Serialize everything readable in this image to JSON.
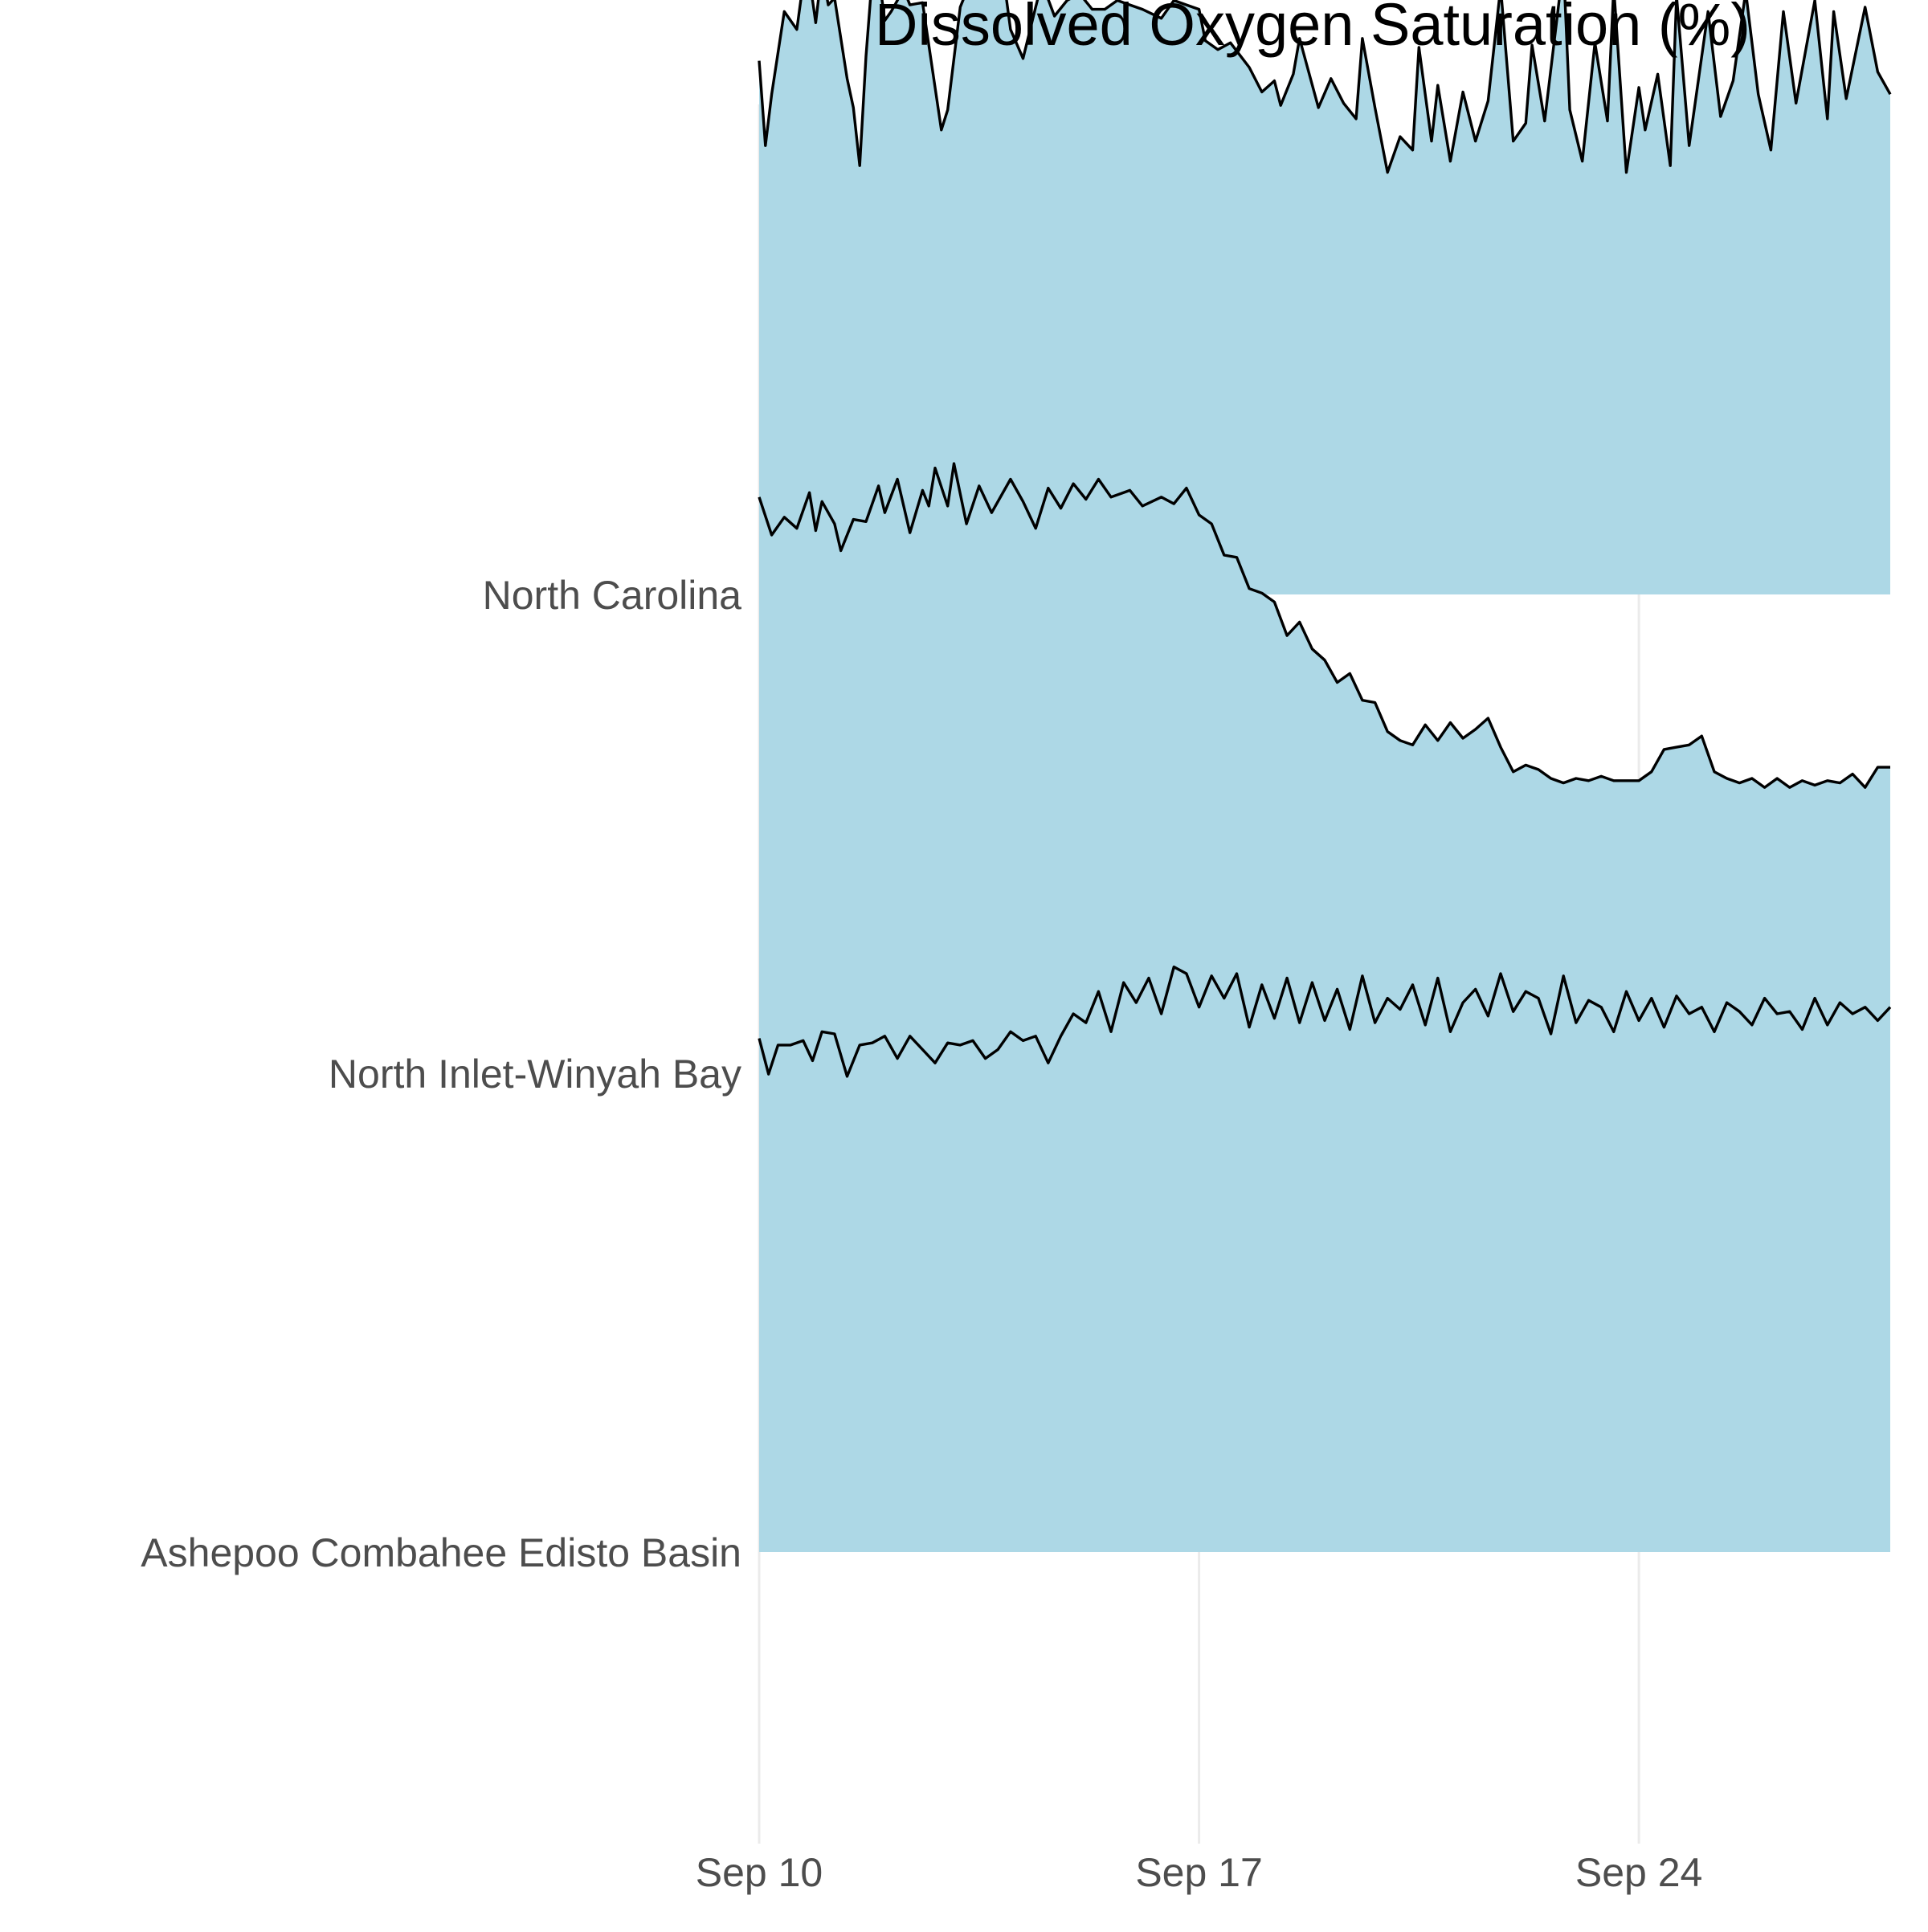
{
  "chart_data": {
    "type": "area",
    "title": "Dissolved Oxygen Saturation (%)",
    "xlabel": "",
    "ylabel": "",
    "xlim": [
      "Sep 10",
      "Sep 28"
    ],
    "x_ticks": [
      {
        "label": "Sep 10",
        "day": 10
      },
      {
        "label": "Sep 17",
        "day": 17
      },
      {
        "label": "Sep 24",
        "day": 24
      }
    ],
    "grid": "vertical major gridlines only",
    "fill_color": "#add8e6",
    "line_color": "#000000",
    "series": [
      {
        "name": "North Carolina",
        "points": [
          [
            10.0,
            94
          ],
          [
            10.1,
            56
          ],
          [
            10.2,
            79
          ],
          [
            10.4,
            116
          ],
          [
            10.6,
            108
          ],
          [
            10.7,
            129
          ],
          [
            10.8,
            131
          ],
          [
            10.9,
            111
          ],
          [
            11.0,
            135
          ],
          [
            11.1,
            119
          ],
          [
            11.2,
            122
          ],
          [
            11.4,
            86
          ],
          [
            11.5,
            73
          ],
          [
            11.6,
            47
          ],
          [
            11.7,
            96
          ],
          [
            11.8,
            132
          ],
          [
            11.9,
            133
          ],
          [
            12.0,
            112
          ],
          [
            12.1,
            116
          ],
          [
            12.3,
            126
          ],
          [
            12.4,
            119
          ],
          [
            12.6,
            120
          ],
          [
            12.8,
            82
          ],
          [
            12.9,
            63
          ],
          [
            13.0,
            72
          ],
          [
            13.2,
            118
          ],
          [
            13.4,
            132
          ],
          [
            13.5,
            131
          ],
          [
            13.7,
            130
          ],
          [
            13.9,
            129
          ],
          [
            14.0,
            108
          ],
          [
            14.2,
            95
          ],
          [
            14.4,
            118
          ],
          [
            14.5,
            129
          ],
          [
            14.7,
            114
          ],
          [
            14.9,
            121
          ],
          [
            15.1,
            124
          ],
          [
            15.3,
            117
          ],
          [
            15.5,
            117
          ],
          [
            15.7,
            121
          ],
          [
            15.9,
            119
          ],
          [
            16.1,
            117
          ],
          [
            16.4,
            113
          ],
          [
            16.6,
            121
          ],
          [
            16.8,
            119
          ],
          [
            17.0,
            117
          ],
          [
            17.1,
            103
          ],
          [
            17.3,
            99
          ],
          [
            17.5,
            102
          ],
          [
            17.8,
            91
          ],
          [
            18.0,
            80
          ],
          [
            18.2,
            85
          ],
          [
            18.3,
            74
          ],
          [
            18.5,
            88
          ],
          [
            18.6,
            104
          ],
          [
            18.9,
            73
          ],
          [
            19.1,
            86
          ],
          [
            19.3,
            75
          ],
          [
            19.5,
            68
          ],
          [
            19.6,
            104
          ],
          [
            19.8,
            73
          ],
          [
            20.0,
            44
          ],
          [
            20.2,
            60
          ],
          [
            20.4,
            54
          ],
          [
            20.5,
            100
          ],
          [
            20.7,
            58
          ],
          [
            20.8,
            83
          ],
          [
            21.0,
            49
          ],
          [
            21.2,
            80
          ],
          [
            21.4,
            58
          ],
          [
            21.6,
            76
          ],
          [
            21.8,
            127
          ],
          [
            22.0,
            58
          ],
          [
            22.2,
            66
          ],
          [
            22.3,
            101
          ],
          [
            22.5,
            67
          ],
          [
            22.8,
            137
          ],
          [
            22.9,
            72
          ],
          [
            23.1,
            49
          ],
          [
            23.3,
            102
          ],
          [
            23.5,
            67
          ],
          [
            23.6,
            127
          ],
          [
            23.8,
            44
          ],
          [
            24.0,
            82
          ],
          [
            24.1,
            63
          ],
          [
            24.3,
            88
          ],
          [
            24.5,
            47
          ],
          [
            24.6,
            123
          ],
          [
            24.8,
            56
          ],
          [
            25.1,
            116
          ],
          [
            25.3,
            69
          ],
          [
            25.5,
            85
          ],
          [
            25.7,
            125
          ],
          [
            25.9,
            79
          ],
          [
            26.1,
            54
          ],
          [
            26.3,
            116
          ],
          [
            26.5,
            75
          ],
          [
            26.8,
            121
          ],
          [
            27.0,
            68
          ],
          [
            27.1,
            116
          ],
          [
            27.3,
            77
          ],
          [
            27.6,
            118
          ],
          [
            27.8,
            89
          ],
          [
            28.0,
            79
          ]
        ]
      },
      {
        "name": "North Inlet-Winyah Bay",
        "points": [
          [
            10.0,
            113
          ],
          [
            10.2,
            96
          ],
          [
            10.4,
            104
          ],
          [
            10.6,
            99
          ],
          [
            10.8,
            115
          ],
          [
            10.9,
            98
          ],
          [
            11.0,
            111
          ],
          [
            11.2,
            101
          ],
          [
            11.3,
            89
          ],
          [
            11.5,
            103
          ],
          [
            11.7,
            102
          ],
          [
            11.9,
            118
          ],
          [
            12.0,
            106
          ],
          [
            12.2,
            121
          ],
          [
            12.4,
            97
          ],
          [
            12.6,
            116
          ],
          [
            12.7,
            109
          ],
          [
            12.8,
            126
          ],
          [
            13.0,
            109
          ],
          [
            13.1,
            128
          ],
          [
            13.3,
            101
          ],
          [
            13.5,
            118
          ],
          [
            13.7,
            106
          ],
          [
            14.0,
            121
          ],
          [
            14.2,
            111
          ],
          [
            14.4,
            99
          ],
          [
            14.6,
            117
          ],
          [
            14.8,
            108
          ],
          [
            15.0,
            119
          ],
          [
            15.2,
            112
          ],
          [
            15.4,
            121
          ],
          [
            15.6,
            113
          ],
          [
            15.9,
            116
          ],
          [
            16.1,
            109
          ],
          [
            16.4,
            113
          ],
          [
            16.6,
            110
          ],
          [
            16.8,
            117
          ],
          [
            17.0,
            105
          ],
          [
            17.2,
            101
          ],
          [
            17.4,
            87
          ],
          [
            17.6,
            86
          ],
          [
            17.8,
            72
          ],
          [
            18.0,
            70
          ],
          [
            18.2,
            66
          ],
          [
            18.4,
            51
          ],
          [
            18.6,
            57
          ],
          [
            18.8,
            45
          ],
          [
            19.0,
            40
          ],
          [
            19.2,
            30
          ],
          [
            19.4,
            34
          ],
          [
            19.6,
            22
          ],
          [
            19.8,
            21
          ],
          [
            20.0,
            8
          ],
          [
            20.2,
            4
          ],
          [
            20.4,
            2
          ],
          [
            20.6,
            11
          ],
          [
            20.8,
            4
          ],
          [
            21.0,
            12
          ],
          [
            21.2,
            5
          ],
          [
            21.4,
            9
          ],
          [
            21.6,
            14
          ],
          [
            21.8,
            1
          ],
          [
            22.0,
            -10
          ],
          [
            22.2,
            -7
          ],
          [
            22.4,
            -9
          ],
          [
            22.6,
            -13
          ],
          [
            22.8,
            -15
          ],
          [
            23.0,
            -13
          ],
          [
            23.2,
            -14
          ],
          [
            23.4,
            -12
          ],
          [
            23.6,
            -14
          ],
          [
            23.8,
            -14
          ],
          [
            24.0,
            -14
          ],
          [
            24.2,
            -10
          ],
          [
            24.4,
            0
          ],
          [
            24.6,
            1
          ],
          [
            24.8,
            2
          ],
          [
            25.0,
            6
          ],
          [
            25.2,
            -10
          ],
          [
            25.4,
            -13
          ],
          [
            25.6,
            -15
          ],
          [
            25.8,
            -13
          ],
          [
            26.0,
            -17
          ],
          [
            26.2,
            -13
          ],
          [
            26.4,
            -17
          ],
          [
            26.6,
            -14
          ],
          [
            26.8,
            -16
          ],
          [
            27.0,
            -14
          ],
          [
            27.2,
            -15
          ],
          [
            27.4,
            -11
          ],
          [
            27.6,
            -17
          ],
          [
            27.8,
            -8
          ],
          [
            28.0,
            -8
          ]
        ]
      },
      {
        "name": "Ashepoo Combahee Edisto Basin",
        "points": [
          [
            10.0,
            85
          ],
          [
            10.15,
            69
          ],
          [
            10.3,
            82
          ],
          [
            10.5,
            82
          ],
          [
            10.7,
            84
          ],
          [
            10.85,
            75
          ],
          [
            11.0,
            88
          ],
          [
            11.2,
            87
          ],
          [
            11.4,
            68
          ],
          [
            11.6,
            82
          ],
          [
            11.8,
            83
          ],
          [
            12.0,
            86
          ],
          [
            12.2,
            76
          ],
          [
            12.4,
            86
          ],
          [
            12.6,
            80
          ],
          [
            12.8,
            74
          ],
          [
            13.0,
            83
          ],
          [
            13.2,
            82
          ],
          [
            13.4,
            84
          ],
          [
            13.6,
            76
          ],
          [
            13.8,
            80
          ],
          [
            14.0,
            88
          ],
          [
            14.2,
            84
          ],
          [
            14.4,
            86
          ],
          [
            14.6,
            74
          ],
          [
            14.8,
            86
          ],
          [
            15.0,
            96
          ],
          [
            15.2,
            92
          ],
          [
            15.4,
            106
          ],
          [
            15.6,
            88
          ],
          [
            15.8,
            110
          ],
          [
            16.0,
            101
          ],
          [
            16.2,
            112
          ],
          [
            16.4,
            96
          ],
          [
            16.6,
            117
          ],
          [
            16.8,
            114
          ],
          [
            17.0,
            99
          ],
          [
            17.2,
            113
          ],
          [
            17.4,
            103
          ],
          [
            17.6,
            114
          ],
          [
            17.8,
            90
          ],
          [
            18.0,
            109
          ],
          [
            18.2,
            94
          ],
          [
            18.4,
            112
          ],
          [
            18.6,
            92
          ],
          [
            18.8,
            110
          ],
          [
            19.0,
            93
          ],
          [
            19.2,
            107
          ],
          [
            19.4,
            89
          ],
          [
            19.6,
            113
          ],
          [
            19.8,
            92
          ],
          [
            20.0,
            103
          ],
          [
            20.2,
            98
          ],
          [
            20.4,
            109
          ],
          [
            20.6,
            91
          ],
          [
            20.8,
            112
          ],
          [
            21.0,
            88
          ],
          [
            21.2,
            101
          ],
          [
            21.4,
            107
          ],
          [
            21.6,
            95
          ],
          [
            21.8,
            114
          ],
          [
            22.0,
            97
          ],
          [
            22.2,
            106
          ],
          [
            22.4,
            103
          ],
          [
            22.6,
            87
          ],
          [
            22.8,
            113
          ],
          [
            23.0,
            92
          ],
          [
            23.2,
            102
          ],
          [
            23.4,
            99
          ],
          [
            23.6,
            88
          ],
          [
            23.8,
            106
          ],
          [
            24.0,
            93
          ],
          [
            24.2,
            103
          ],
          [
            24.4,
            90
          ],
          [
            24.6,
            104
          ],
          [
            24.8,
            96
          ],
          [
            25.0,
            99
          ],
          [
            25.2,
            88
          ],
          [
            25.4,
            101
          ],
          [
            25.6,
            97
          ],
          [
            25.8,
            91
          ],
          [
            26.0,
            103
          ],
          [
            26.2,
            96
          ],
          [
            26.4,
            97
          ],
          [
            26.6,
            89
          ],
          [
            26.8,
            103
          ],
          [
            27.0,
            91
          ],
          [
            27.2,
            101
          ],
          [
            27.4,
            96
          ],
          [
            27.6,
            99
          ],
          [
            27.8,
            93
          ],
          [
            28.0,
            99
          ]
        ]
      }
    ]
  }
}
